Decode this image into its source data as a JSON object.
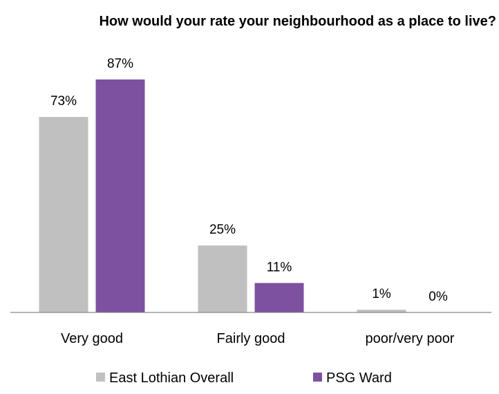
{
  "chart_data": {
    "type": "bar",
    "title": "How would your rate your neighbourhood as a place to live?",
    "xlabel": "",
    "ylabel": "",
    "categories": [
      "Very good",
      "Fairly good",
      "poor/very poor"
    ],
    "series": [
      {
        "name": "East Lothian Overall",
        "color": "#c0c0c0",
        "values": [
          73,
          25,
          1
        ],
        "labels": [
          "73%",
          "25%",
          "1%"
        ]
      },
      {
        "name": "PSG Ward",
        "color": "#7e51a0",
        "values": [
          87,
          11,
          0
        ],
        "labels": [
          "87%",
          "11%",
          "0%"
        ]
      }
    ],
    "ylim": [
      0,
      87
    ],
    "grid": false,
    "legend_position": "bottom"
  }
}
